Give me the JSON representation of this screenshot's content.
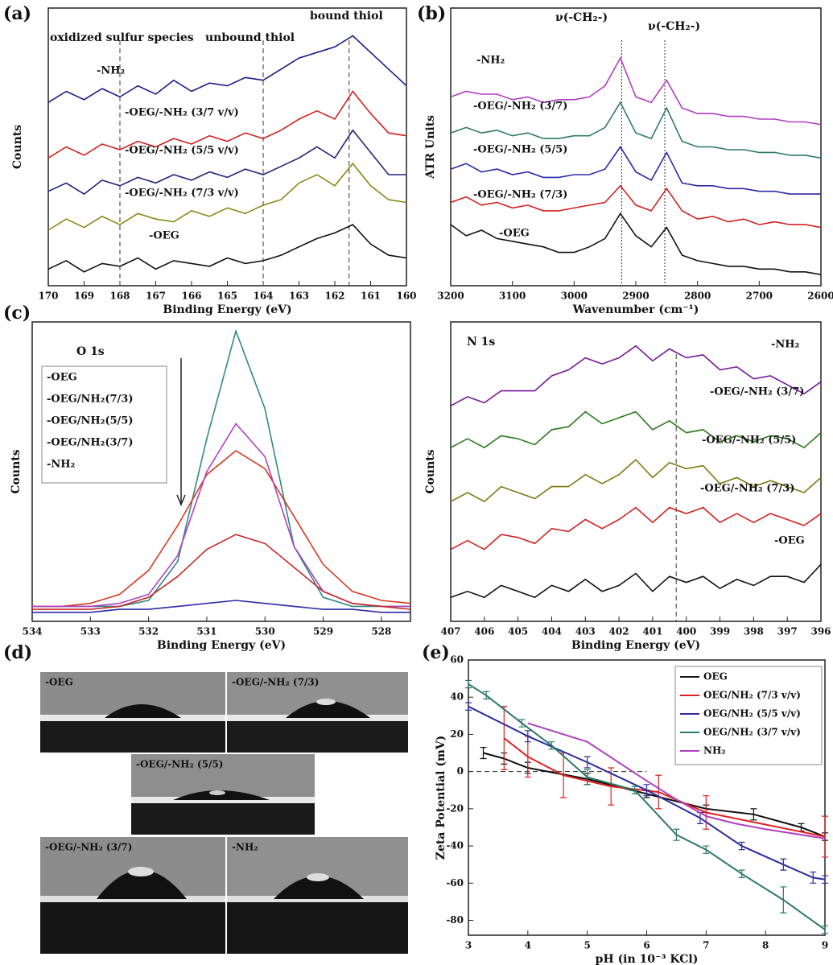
{
  "chart_data": [
    {
      "type": "line",
      "panel": "(a)",
      "xlabel": "Binding Energy (eV)",
      "ylabel": "Counts",
      "xlim": [
        170,
        160
      ],
      "xticks": [
        170,
        169,
        168,
        167,
        166,
        165,
        164,
        163,
        162,
        161,
        160
      ],
      "ylim": [
        0,
        100
      ],
      "x": [
        170,
        169.5,
        169,
        168.5,
        168,
        167.5,
        167,
        166.5,
        166,
        165.5,
        165,
        164.5,
        164,
        163.5,
        163,
        162.5,
        162,
        161.5,
        161,
        160.5,
        160
      ],
      "vlines": [
        168,
        164,
        161.6
      ],
      "annotations": [
        "oxidized sulfur species",
        "unbound thiol",
        "bound thiol"
      ],
      "series": [
        {
          "name": "-NH₂",
          "color": "#1a1a8c",
          "values": [
            66,
            70,
            67,
            71,
            68,
            72,
            69,
            74,
            70,
            73,
            72,
            75,
            74,
            78,
            82,
            84,
            86,
            90,
            84,
            78,
            72
          ]
        },
        {
          "name": "-OEG/-NH₂ (3/7 v/v)",
          "color": "#d42020",
          "values": [
            46,
            50,
            47,
            51,
            49,
            52,
            50,
            53,
            51,
            54,
            52,
            55,
            53,
            56,
            60,
            63,
            60,
            70,
            62,
            55,
            54
          ]
        },
        {
          "name": "-OEG/-NH₂ (5/5 v/v)",
          "color": "#24247a",
          "values": [
            34,
            37,
            33,
            38,
            36,
            39,
            37,
            40,
            38,
            41,
            39,
            42,
            40,
            43,
            46,
            50,
            46,
            56,
            48,
            40,
            40
          ]
        },
        {
          "name": "-OEG/-NH₂ (7/3 v/v)",
          "color": "#8a8a1a",
          "values": [
            20,
            24,
            21,
            25,
            22,
            26,
            24,
            23,
            27,
            25,
            28,
            26,
            29,
            31,
            37,
            40,
            36,
            44,
            36,
            31,
            30
          ]
        },
        {
          "name": "-OEG",
          "color": "#111111",
          "values": [
            6,
            9,
            5,
            8,
            7,
            10,
            6,
            9,
            8,
            7,
            10,
            8,
            9,
            11,
            14,
            17,
            19,
            22,
            15,
            11,
            10
          ]
        }
      ]
    },
    {
      "type": "line",
      "panel": "(b)",
      "xlabel": "Wavenumber (cm⁻¹)",
      "ylabel": "ATR Units",
      "xlim": [
        3200,
        2600
      ],
      "xticks": [
        3200,
        3100,
        3000,
        2900,
        2800,
        2700,
        2600
      ],
      "ylim": [
        0,
        100
      ],
      "x": [
        3200,
        3175,
        3150,
        3125,
        3100,
        3075,
        3050,
        3025,
        3000,
        2975,
        2950,
        2925,
        2900,
        2875,
        2850,
        2825,
        2800,
        2775,
        2750,
        2725,
        2700,
        2675,
        2650,
        2625,
        2600
      ],
      "vlines": [
        2923,
        2853
      ],
      "annotations": [
        "ν(-CH₂-)",
        "ν(-CH₂-)"
      ],
      "series": [
        {
          "name": "-NH₂",
          "color": "#b03cc0",
          "values": [
            68,
            70,
            69,
            69,
            67,
            68,
            66,
            67,
            67,
            68,
            72,
            82,
            68,
            66,
            74,
            64,
            62,
            62,
            61,
            61,
            60,
            60,
            59,
            59,
            58
          ]
        },
        {
          "name": "-OEG/-NH₂ (3/7)",
          "color": "#2e7a66",
          "values": [
            55,
            57,
            55,
            56,
            54,
            55,
            53,
            53,
            54,
            54,
            57,
            66,
            55,
            53,
            64,
            52,
            50,
            50,
            49,
            49,
            48,
            48,
            47,
            47,
            46
          ]
        },
        {
          "name": "-OEG/-NH₂ (5/5)",
          "color": "#2a2aa8",
          "values": [
            42,
            44,
            41,
            42,
            40,
            41,
            39,
            39,
            40,
            40,
            42,
            50,
            41,
            38,
            48,
            37,
            36,
            36,
            35,
            35,
            34,
            34,
            33,
            33,
            33
          ]
        },
        {
          "name": "-OEG/-NH₂ (7/3)",
          "color": "#d42020",
          "values": [
            30,
            32,
            29,
            30,
            28,
            29,
            27,
            27,
            28,
            29,
            30,
            36,
            29,
            27,
            35,
            27,
            24,
            25,
            23,
            24,
            22,
            23,
            22,
            22,
            21
          ]
        },
        {
          "name": "-OEG",
          "color": "#111111",
          "values": [
            22,
            18,
            20,
            17,
            16,
            15,
            14,
            12,
            12,
            14,
            17,
            26,
            18,
            14,
            21,
            11,
            9,
            8,
            7,
            7,
            6,
            6,
            5,
            5,
            4
          ]
        }
      ]
    },
    {
      "type": "line",
      "panel": "(c)",
      "xlabel": "Binding Energy (eV)",
      "ylabel": "Counts",
      "xlim": [
        534,
        527.5
      ],
      "xticks": [
        534,
        533,
        532,
        531,
        530,
        529,
        528
      ],
      "ylim": [
        0,
        100
      ],
      "x": [
        534,
        533.5,
        533,
        532.5,
        532,
        531.5,
        531,
        530.5,
        530,
        529.5,
        529,
        528.5,
        528,
        527.5
      ],
      "annotations": [
        "O 1s"
      ],
      "series": [
        {
          "name": "-OEG",
          "color": "#2e8a86",
          "values": [
            5,
            5,
            5,
            5,
            7,
            20,
            61,
            97,
            71,
            25,
            8,
            5,
            5,
            5
          ]
        },
        {
          "name": "-OEG/NH₂(7/3)",
          "color": "#d43a20",
          "values": [
            5,
            5,
            6,
            9,
            17,
            32,
            49,
            57,
            51,
            35,
            19,
            10,
            7,
            6
          ]
        },
        {
          "name": "-OEG/NH₂(5/5)",
          "color": "#b040c0",
          "values": [
            5,
            5,
            5,
            6,
            9,
            22,
            50,
            66,
            55,
            25,
            10,
            6,
            5,
            5
          ]
        },
        {
          "name": "-OEG/NH₂(3/7)",
          "color": "#c82828",
          "values": [
            4,
            4,
            4,
            5,
            8,
            15,
            24,
            29,
            26,
            18,
            10,
            6,
            5,
            4
          ]
        },
        {
          "name": "-NH₂",
          "color": "#2a2aa8",
          "values": [
            3,
            3,
            3,
            4,
            4,
            5,
            6,
            7,
            6,
            5,
            4,
            4,
            3,
            3
          ]
        }
      ]
    },
    {
      "type": "line",
      "xlabel": "Binding Energy (eV)",
      "ylabel": "Counts",
      "xlim": [
        407,
        396
      ],
      "xticks": [
        407,
        406,
        405,
        404,
        403,
        402,
        401,
        400,
        399,
        398,
        397,
        396
      ],
      "ylim": [
        0,
        100
      ],
      "x": [
        407,
        406.5,
        406,
        405.5,
        405,
        404.5,
        404,
        403.5,
        403,
        402.5,
        402,
        401.5,
        401,
        400.5,
        400,
        399.5,
        399,
        398.5,
        398,
        397.5,
        397,
        396.5,
        396
      ],
      "vlines": [
        400.3
      ],
      "annotations": [
        "N 1s"
      ],
      "series": [
        {
          "name": "-NH₂",
          "color": "#7a1a9a",
          "values": [
            72,
            75,
            73,
            77,
            77,
            77,
            82,
            84,
            88,
            86,
            88,
            92,
            87,
            91,
            88,
            89,
            84,
            85,
            81,
            82,
            79,
            76,
            80
          ]
        },
        {
          "name": "-OEG/-NH₂ (3/7)",
          "color": "#2a7a1a",
          "values": [
            58,
            61,
            58,
            62,
            61,
            59,
            64,
            65,
            70,
            66,
            68,
            70,
            64,
            67,
            63,
            64,
            60,
            62,
            60,
            62,
            61,
            58,
            63
          ]
        },
        {
          "name": "-OEG/-NH₂ (5/5)",
          "color": "#7a7a10",
          "values": [
            40,
            43,
            40,
            45,
            43,
            41,
            45,
            45,
            49,
            46,
            49,
            54,
            48,
            53,
            51,
            52,
            46,
            48,
            45,
            47,
            45,
            43,
            48
          ]
        },
        {
          "name": "-OEG/-NH₂ (7/3)",
          "color": "#d42020",
          "values": [
            24,
            27,
            24,
            29,
            28,
            26,
            31,
            30,
            34,
            31,
            34,
            38,
            33,
            38,
            36,
            38,
            33,
            36,
            33,
            36,
            34,
            32,
            36
          ]
        },
        {
          "name": "-OEG",
          "color": "#111111",
          "values": [
            8,
            10,
            8,
            12,
            10,
            8,
            12,
            10,
            14,
            10,
            12,
            16,
            10,
            15,
            13,
            15,
            11,
            14,
            12,
            15,
            15,
            13,
            19
          ]
        }
      ]
    },
    {
      "type": "errorline",
      "panel": "(e)",
      "xlabel": "pH (in 10⁻³ KCl)",
      "ylabel": "Zeta Potential (mV)",
      "xlim": [
        3,
        9
      ],
      "xticks": [
        3,
        4,
        5,
        6,
        7,
        8,
        9
      ],
      "ylim": [
        -88,
        60
      ],
      "yticks": [
        -80,
        -60,
        -40,
        -20,
        0,
        20,
        40,
        60
      ],
      "reference_line": {
        "x": [
          3,
          6
        ],
        "y": 0
      },
      "legend": "upper right",
      "series": [
        {
          "name": "OEG",
          "color": "#111111",
          "x": [
            3.25,
            3.6,
            4.0,
            5.0,
            6.0,
            7.0,
            7.8,
            8.6,
            9.0
          ],
          "values": [
            10,
            7,
            2,
            -4,
            -12,
            -20,
            -23,
            -30,
            -35
          ],
          "errors": [
            3,
            3,
            3,
            3,
            2,
            2,
            3,
            2,
            2
          ]
        },
        {
          "name": "OEG/NH₂ (7/3 v/v)",
          "color": "#e0201f",
          "x": [
            3.6,
            4.0,
            4.6,
            5.4,
            6.2,
            7.0,
            9.0
          ],
          "values": [
            18,
            8,
            -2,
            -8,
            -11,
            -22,
            -35
          ],
          "errors": [
            17,
            11,
            12,
            10,
            9,
            9,
            11
          ]
        },
        {
          "name": "OEG/NH₂ (5/5 v/v)",
          "color": "#2c2ca0",
          "x": [
            3.0,
            4.0,
            5.0,
            6.0,
            6.9,
            7.6,
            8.3,
            8.8,
            9.0
          ],
          "values": [
            35,
            19,
            5,
            -10,
            -25,
            -40,
            -50,
            -57,
            -58
          ],
          "errors": [
            2,
            3,
            3,
            3,
            3,
            2,
            3,
            3,
            2
          ]
        },
        {
          "name": "OEG/NH₂ (3/7 v/v)",
          "color": "#2e7a66",
          "x": [
            3.0,
            3.3,
            3.9,
            4.4,
            5.0,
            5.8,
            6.5,
            7.0,
            7.6,
            8.3,
            9.0
          ],
          "values": [
            47,
            41,
            26,
            14,
            -3,
            -10,
            -34,
            -42,
            -55,
            -69,
            -85
          ],
          "errors": [
            2,
            2,
            2,
            2,
            4,
            2,
            3,
            2,
            2,
            7,
            2
          ]
        },
        {
          "name": "NH₂",
          "color": "#b040c0",
          "x": [
            4.0,
            5.0,
            6.0,
            6.5,
            7.0,
            7.5,
            8.0,
            9.0
          ],
          "values": [
            26,
            16,
            -5,
            -15,
            -24,
            -28,
            -31,
            -36
          ]
        }
      ]
    }
  ],
  "photos": {
    "panel": "(d)",
    "labels": [
      "-OEG",
      "-OEG/-NH₂ (7/3)",
      "-OEG/-NH₂ (5/5)",
      "-OEG/-NH₂ (3/7)",
      "-NH₂"
    ]
  }
}
